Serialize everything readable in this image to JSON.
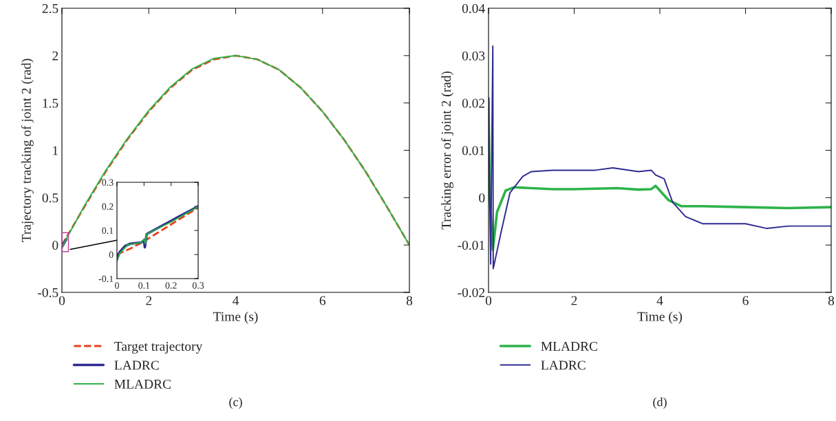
{
  "chart_data": [
    {
      "type": "line",
      "xlabel": "Time (s)",
      "ylabel": "Trajectory tracking of joint 2 (rad)",
      "xlim": [
        0,
        8
      ],
      "ylim": [
        -0.5,
        2.5
      ],
      "xticks": [
        0,
        2,
        4,
        6,
        8
      ],
      "yticks": [
        -0.5,
        0,
        0.5,
        1,
        1.5,
        2,
        2.5
      ],
      "legend": "bottom",
      "annotations": [
        "(c)"
      ],
      "series": [
        {
          "name": "Target trajectory",
          "color": "#e8401c",
          "line_style": "dashed",
          "x": [
            0,
            0.5,
            1,
            1.5,
            2,
            2.5,
            3,
            3.5,
            4,
            4.5,
            5,
            5.5,
            6,
            6.5,
            7,
            7.5,
            8
          ],
          "values": [
            0,
            0.39,
            0.77,
            1.11,
            1.41,
            1.66,
            1.85,
            1.96,
            2.0,
            1.96,
            1.85,
            1.66,
            1.41,
            1.11,
            0.77,
            0.39,
            0
          ]
        },
        {
          "name": "LADRC",
          "color": "#2e2a8f",
          "x": [
            0,
            0.1
          ],
          "values": [
            -0.02,
            0.06
          ]
        },
        {
          "name": "MLADRC",
          "color": "#2db34a",
          "x": [
            0,
            0.1,
            0.5,
            1,
            1.5,
            2,
            2.5,
            3,
            3.5,
            4,
            4.5,
            5,
            5.5,
            6,
            6.5,
            7,
            7.5,
            8
          ],
          "values": [
            -0.025,
            0.065,
            0.4,
            0.78,
            1.12,
            1.42,
            1.67,
            1.86,
            1.97,
            2.0,
            1.96,
            1.85,
            1.66,
            1.41,
            1.11,
            0.77,
            0.39,
            0
          ]
        }
      ]
    },
    {
      "type": "line",
      "xlim": [
        0,
        0.3
      ],
      "ylim": [
        -0.1,
        0.3
      ],
      "xticks": [
        0,
        0.1,
        0.2,
        0.3
      ],
      "yticks": [
        -0.1,
        0,
        0.1,
        0.2,
        0.3
      ],
      "series": [
        {
          "color": "#e8401c",
          "line_style": "dashed",
          "x": [
            0,
            0.05,
            0.1,
            0.15,
            0.2,
            0.3
          ],
          "values": [
            0,
            0.025,
            0.055,
            0.09,
            0.125,
            0.195
          ]
        },
        {
          "color": "#2e2a8f",
          "x": [
            0,
            0.01,
            0.03,
            0.05,
            0.09,
            0.1,
            0.103,
            0.11,
            0.2,
            0.3
          ],
          "values": [
            -0.02,
            0.01,
            0.035,
            0.045,
            0.05,
            0.06,
            0.03,
            0.085,
            0.14,
            0.2
          ]
        },
        {
          "color": "#2db34a",
          "x": [
            0,
            0.01,
            0.04,
            0.09,
            0.1,
            0.105,
            0.11,
            0.2,
            0.3
          ],
          "values": [
            -0.025,
            0.005,
            0.04,
            0.05,
            0.065,
            0.045,
            0.085,
            0.135,
            0.198
          ]
        }
      ]
    },
    {
      "type": "line",
      "xlabel": "Time (s)",
      "ylabel": "Tracking error of joint 2 (rad)",
      "xlim": [
        0,
        8
      ],
      "ylim": [
        -0.02,
        0.04
      ],
      "xticks": [
        0,
        2,
        4,
        6,
        8
      ],
      "yticks": [
        -0.02,
        -0.01,
        0,
        0.01,
        0.02,
        0.03,
        0.04
      ],
      "legend": "bottom",
      "annotations": [
        "(d)"
      ],
      "series": [
        {
          "name": "MLADRC",
          "color": "#2db34a",
          "x": [
            0,
            0.03,
            0.1,
            0.2,
            0.4,
            0.6,
            1,
            1.5,
            2,
            2.5,
            3,
            3.5,
            3.8,
            3.9,
            4,
            4.2,
            4.5,
            5,
            6,
            7,
            8
          ],
          "values": [
            0.021,
            0.0,
            -0.011,
            -0.003,
            0.0015,
            0.0022,
            0.002,
            0.0018,
            0.0018,
            0.0019,
            0.002,
            0.0017,
            0.0018,
            0.0025,
            0.0015,
            -0.0005,
            -0.0018,
            -0.0018,
            -0.002,
            -0.0022,
            -0.002
          ]
        },
        {
          "name": "LADRC",
          "color": "#2e2a8f",
          "x": [
            0,
            0.02,
            0.05,
            0.1,
            0.11,
            0.3,
            0.5,
            0.8,
            1,
            1.5,
            2,
            2.5,
            2.9,
            3.5,
            3.8,
            3.9,
            4.1,
            4.3,
            4.6,
            5,
            6,
            6.5,
            7,
            8
          ],
          "values": [
            0.021,
            0.005,
            -0.014,
            0.032,
            -0.015,
            -0.007,
            0.001,
            0.0045,
            0.0055,
            0.0058,
            0.0058,
            0.0058,
            0.0063,
            0.0055,
            0.0058,
            0.0048,
            0.004,
            -0.001,
            -0.004,
            -0.0055,
            -0.0055,
            -0.0065,
            -0.006,
            -0.006
          ]
        }
      ]
    }
  ]
}
